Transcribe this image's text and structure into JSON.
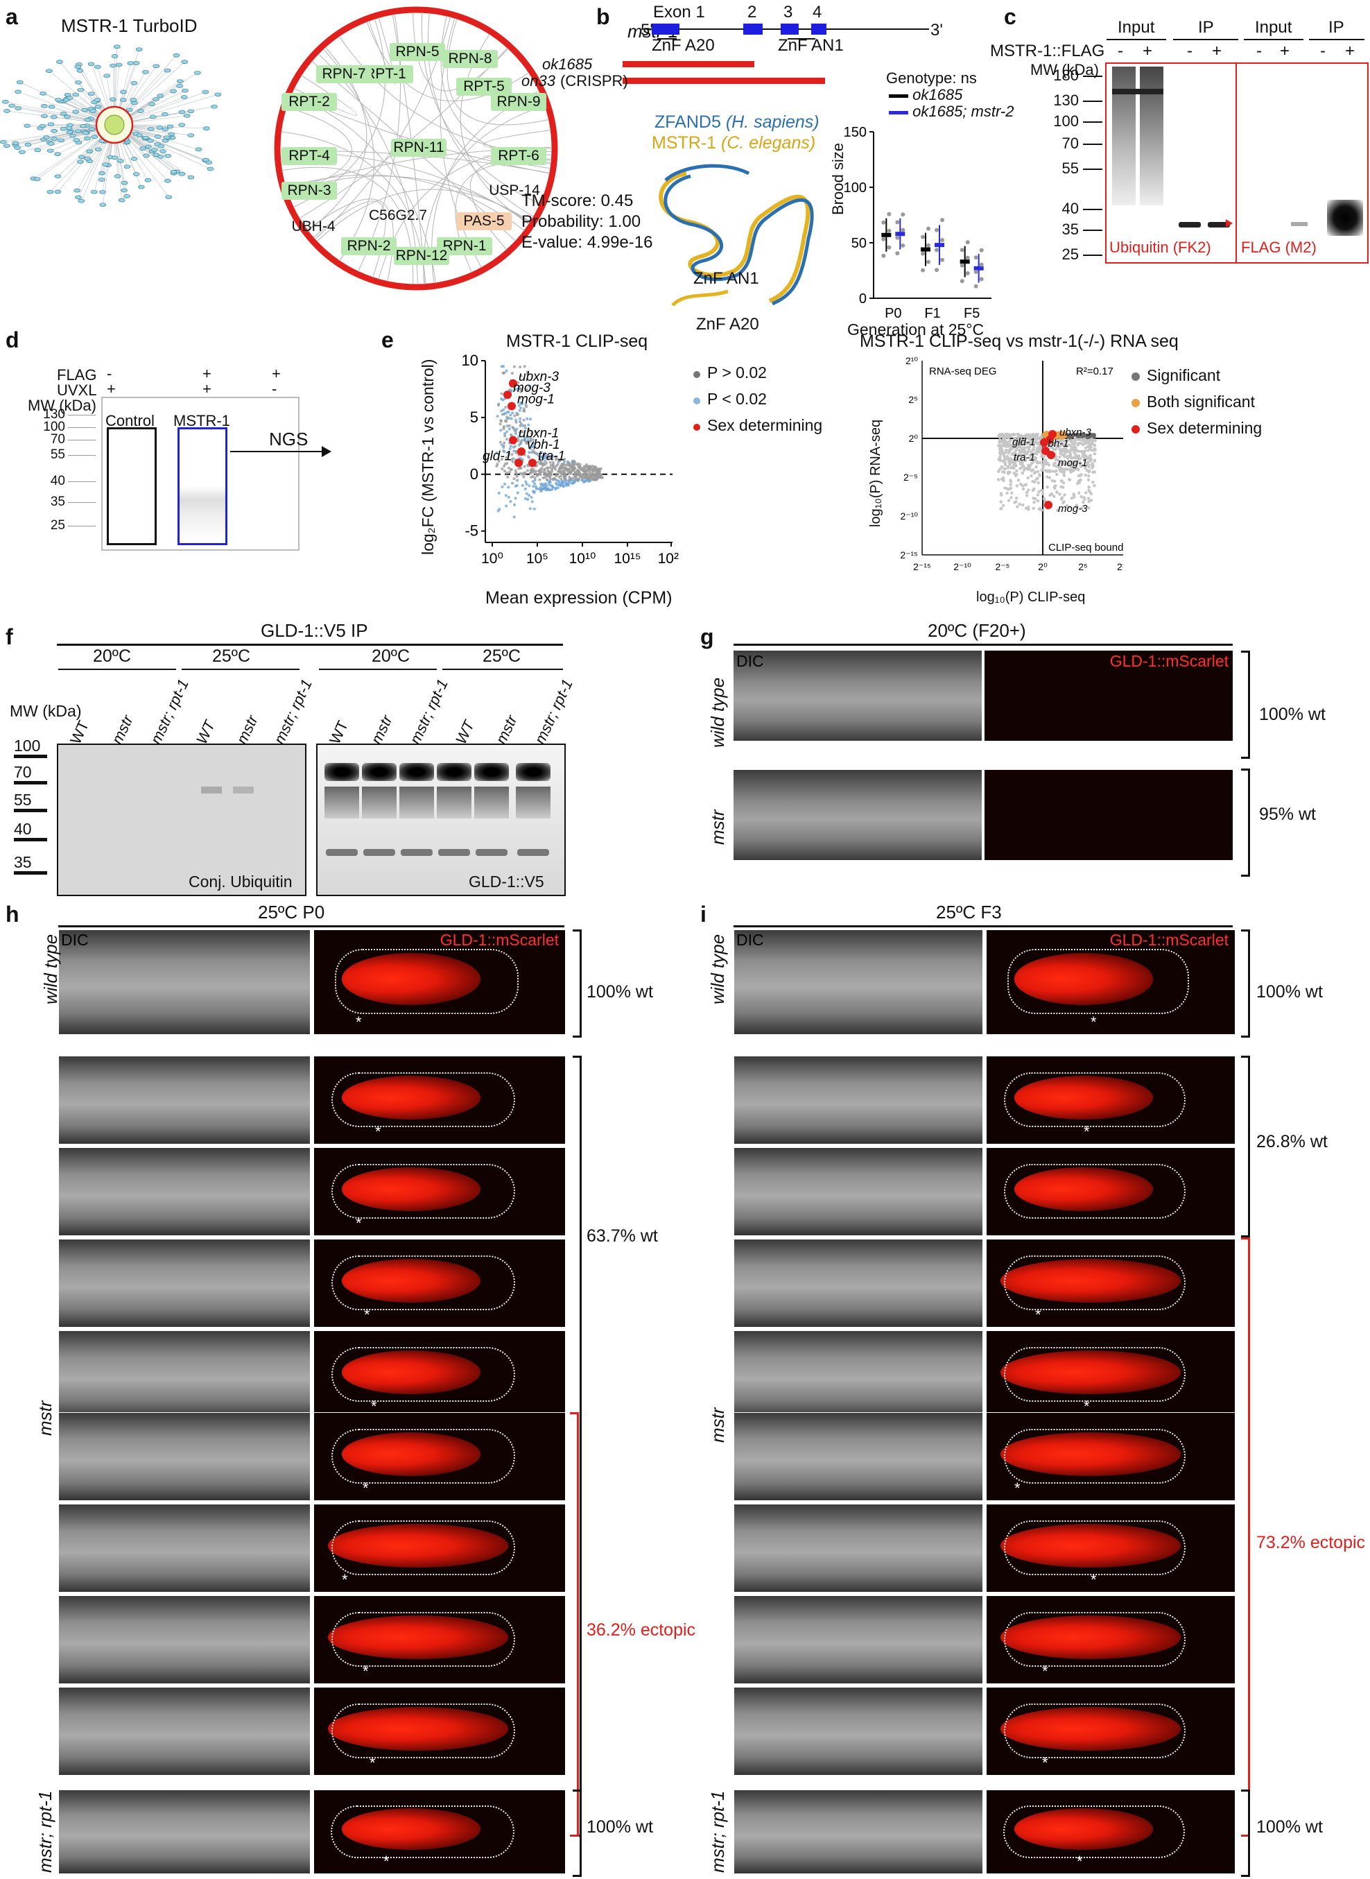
{
  "panel_letters": [
    "a",
    "b",
    "c",
    "d",
    "e",
    "f",
    "g",
    "h",
    "i"
  ],
  "a": {
    "title": "MSTR-1 TurboID",
    "nodes": [
      "RPN-5",
      "RPN-8",
      "RPT-1",
      "RPN-7",
      "RPT-5",
      "RPT-2",
      "RPN-9",
      "RPT-4",
      "RPN-11",
      "RPT-6",
      "USP-14",
      "RPN-3",
      "UBH-4",
      "C56G2.7",
      "PAS-5",
      "RPN-2",
      "RPN-1",
      "RPN-12"
    ]
  },
  "b": {
    "gene": "mstr-1",
    "five": "5'",
    "three": "3'",
    "exon1": "Exon 1",
    "exon2": "2",
    "exon3": "3",
    "exon4": "4",
    "znfa20": "ZnF A20",
    "znfan1": "ZnF AN1",
    "allele1": "ok1685",
    "allele2": "on33",
    "allele2_note": "(CRISPR)",
    "legend_h": "ZFAND5",
    "legend_h_sp": "(H. sapiens)",
    "legend_c": "MSTR-1",
    "legend_c_sp": "(C. elegans)",
    "tm": "TM-score: 0.45",
    "prob": "Probability: 1.00",
    "eval": "E-value: 4.99e-16",
    "struct_an1": "ZnF AN1",
    "struct_a20": "ZnF A20",
    "colors": {
      "human": "#2a6fb0",
      "worm": "#e3b321"
    }
  },
  "brood_chart": {
    "type": "scatter",
    "title": "",
    "genotype_note": "Genotype: ns",
    "xlabel": "Generation at 25°C",
    "ylabel": "Brood size",
    "categories": [
      "P0",
      "F1",
      "F5"
    ],
    "ylim": [
      0,
      150
    ],
    "yticks": [
      0,
      50,
      100,
      150
    ],
    "series": [
      {
        "name": "ok1685",
        "color": "#000000",
        "mean": [
          57,
          44,
          33
        ],
        "sd": [
          15,
          15,
          14
        ]
      },
      {
        "name": "ok1685; mstr-2",
        "color": "#2b2bd9",
        "mean": [
          58,
          48,
          27
        ],
        "sd": [
          14,
          18,
          13
        ]
      }
    ]
  },
  "c": {
    "construct": "MSTR-1::FLAG",
    "mw": "MW (kDa)",
    "input": "Input",
    "ip": "IP",
    "minus": "-",
    "plus": "+",
    "markers": [
      "180",
      "130",
      "100",
      "70",
      "55",
      "40",
      "35",
      "25"
    ],
    "blot1": "Ubiquitin (FK2)",
    "blot2": "FLAG (M2)"
  },
  "d": {
    "flag": "FLAG",
    "uvxl": "UVXL",
    "mw": "MW (kDa)",
    "col1": [
      "-",
      "+"
    ],
    "col2": [
      "+",
      "+"
    ],
    "col3": [
      "+",
      "-"
    ],
    "markers": [
      "130",
      "100",
      "70",
      "55",
      "40",
      "35",
      "25"
    ],
    "box1": "Control",
    "box2": "MSTR-1",
    "arrow": "NGS"
  },
  "e": {
    "title": "MSTR-1 CLIP-seq",
    "ylabel": "log₂FC (MSTR-1 vs control)",
    "xlabel": "Mean expression (CPM)",
    "yticks": [
      "10",
      "5",
      "0",
      "-5"
    ],
    "xticks": [
      "10⁰",
      "10⁵",
      "10¹⁰",
      "10¹⁵",
      "10²⁰"
    ],
    "genes": [
      "ubxn-3",
      "mog-3",
      "mog-1",
      "ubxn-1",
      "vbh-1",
      "gld-1",
      "tra-1"
    ],
    "legend": [
      "P > 0.02",
      "P < 0.02",
      "Sex determining"
    ],
    "title2": "MSTR-1 CLIP-seq vs mstr-1(-/-) RNA seq",
    "ylabel2": "log₁₀(P) RNA-seq",
    "xlabel2": "log₁₀(P)  CLIP-seq",
    "yticks2": [
      "2¹⁰",
      "2⁵",
      "2⁰",
      "2⁻⁵",
      "2⁻¹⁰",
      "2⁻¹⁵"
    ],
    "xticks2": [
      "2⁻¹⁵",
      "2⁻¹⁰",
      "2⁻⁵",
      "2⁰",
      "2⁵",
      "2¹⁰"
    ],
    "deg": "RNA-seq DEG",
    "r2": "R²=0.17",
    "clipbound": "CLIP-seq bound",
    "genes2": [
      "ubxn-3",
      "vbh-1",
      "gld-1",
      "tra-1",
      "mog-1",
      "mog-3"
    ],
    "legend2": [
      "Significant",
      "Both significant",
      "Sex determining"
    ]
  },
  "f": {
    "title": "GLD-1::V5 IP",
    "temps": [
      "20ºC",
      "25ºC",
      "20ºC",
      "25ºC"
    ],
    "mw": "MW (kDa)",
    "lanes": [
      "WT",
      "mstr",
      "mstr; rpt-1",
      "WT",
      "mstr",
      "mstr; rpt-1"
    ],
    "markers": [
      "100",
      "70",
      "55",
      "40",
      "35"
    ],
    "blot1": "Conj. Ubiquitin",
    "blot2": "GLD-1::V5"
  },
  "g": {
    "title": "20ºC (F20+)",
    "dic": "DIC",
    "fluor": "GLD-1::mScarlet",
    "row1": "wild type",
    "row2": "mstr",
    "pct1": "100% wt",
    "pct2": "95% wt"
  },
  "h": {
    "title": "25ºC P0",
    "dic": "DIC",
    "fluor": "GLD-1::mScarlet",
    "wt": "wild type",
    "mstr": "mstr",
    "rpt": "mstr; rpt-1",
    "pct_wt": "100% wt",
    "pct_mstr_wt": "63.7% wt",
    "pct_mstr_ect": "36.2% ectopic",
    "pct_rpt": "100% wt"
  },
  "i": {
    "title": "25ºC F3",
    "dic": "DIC",
    "fluor": "GLD-1::mScarlet",
    "wt": "wild type",
    "mstr": "mstr",
    "rpt": "mstr; rpt-1",
    "pct_wt": "100% wt",
    "pct_mstr_wt": "26.8% wt",
    "pct_mstr_ect": "73.2% ectopic",
    "pct_rpt": "100% wt"
  },
  "asterisk": "*"
}
